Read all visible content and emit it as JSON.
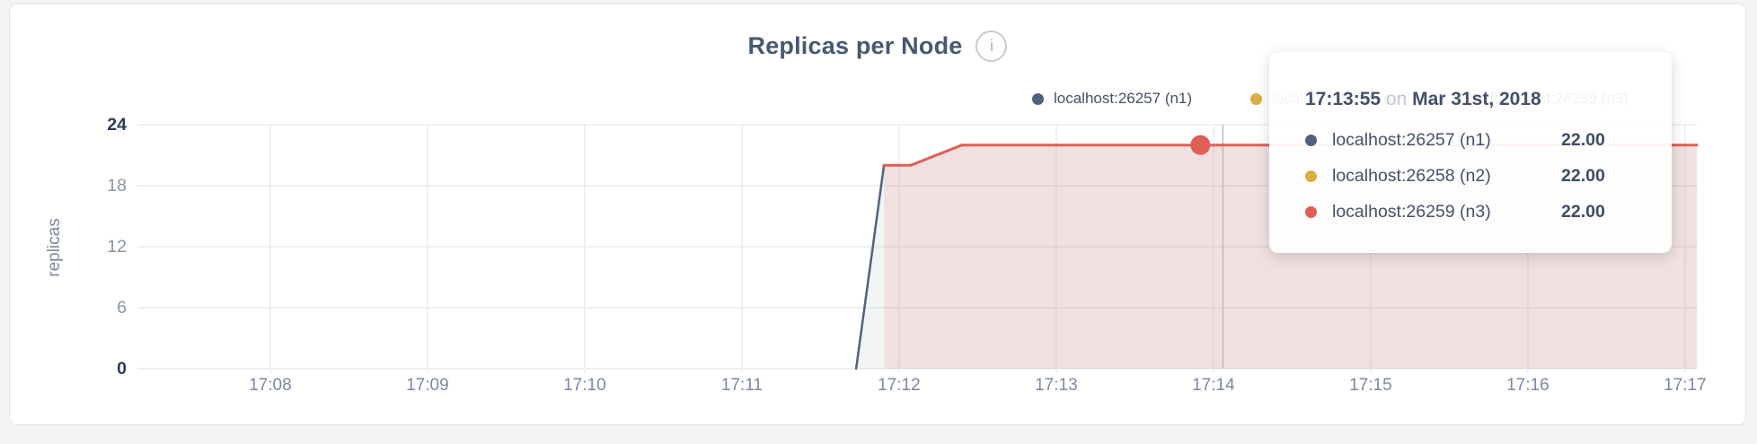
{
  "page": {
    "background": "#f4f4f5"
  },
  "card": {
    "info_glyph": "i"
  },
  "chart_data": {
    "type": "area",
    "title": "Replicas per Node",
    "ylabel": "replicas",
    "xlabel": "",
    "grid": true,
    "legend_position": "top-right-inside",
    "colors": {
      "grid_line": "#ececee",
      "hover_guideline": "#b9babc",
      "axis_text": "#8a92a8",
      "axis_text_strong": "#2c3d58",
      "title_text": "#475872"
    },
    "x_axis": {
      "unit": "time (HH:MM), minutes after 17:00",
      "ticks": [
        {
          "minute": 8,
          "label": "17:08"
        },
        {
          "minute": 9,
          "label": "17:09"
        },
        {
          "minute": 10,
          "label": "17:10"
        },
        {
          "minute": 11,
          "label": "17:11"
        },
        {
          "minute": 12,
          "label": "17:12"
        },
        {
          "minute": 13,
          "label": "17:13"
        },
        {
          "minute": 14,
          "label": "17:14"
        },
        {
          "minute": 15,
          "label": "17:15"
        },
        {
          "minute": 16,
          "label": "17:16"
        },
        {
          "minute": 17,
          "label": "17:17"
        }
      ]
    },
    "xlim_minutes": [
      7.155,
      17.075
    ],
    "y_axis": {
      "ticks": [
        0,
        6,
        12,
        18,
        24
      ],
      "strong_ticks": [
        0,
        24
      ]
    },
    "ylim": [
      0,
      24
    ],
    "series": [
      {
        "name": "localhost:26257 (n1)",
        "color": "#51607d",
        "fill": "rgba(81,96,125,0.07)",
        "line_width": 2.5,
        "points_minute_value": [
          [
            11.727,
            0
          ],
          [
            11.904,
            20
          ],
          [
            12.074,
            20
          ],
          [
            12.4,
            22
          ],
          [
            17.075,
            22
          ]
        ]
      },
      {
        "name": "localhost:26258 (n2)",
        "color": "#dcae44",
        "fill": "none",
        "line_width": 2.5,
        "points_minute_value": [
          [
            11.904,
            20
          ],
          [
            12.074,
            20
          ],
          [
            12.4,
            22
          ],
          [
            17.075,
            22
          ]
        ]
      },
      {
        "name": "localhost:26259 (n3)",
        "color": "#df5f57",
        "fill": "rgba(223,100,80,0.13)",
        "line_width": 3,
        "points_minute_value": [
          [
            11.904,
            20
          ],
          [
            12.074,
            20
          ],
          [
            12.4,
            22
          ],
          [
            17.075,
            22
          ]
        ]
      }
    ],
    "hover": {
      "time_label": "17:13:55",
      "on_word": "on",
      "date_label": "Mar 31st, 2018",
      "point_minute": 13.917,
      "point_value": 22,
      "guideline_minute": 14.06,
      "rows": [
        {
          "name": "localhost:26257 (n1)",
          "value": "22.00",
          "color": "#51607d"
        },
        {
          "name": "localhost:26258 (n2)",
          "value": "22.00",
          "color": "#dcae44"
        },
        {
          "name": "localhost:26259 (n3)",
          "value": "22.00",
          "color": "#df5f57"
        }
      ]
    }
  }
}
